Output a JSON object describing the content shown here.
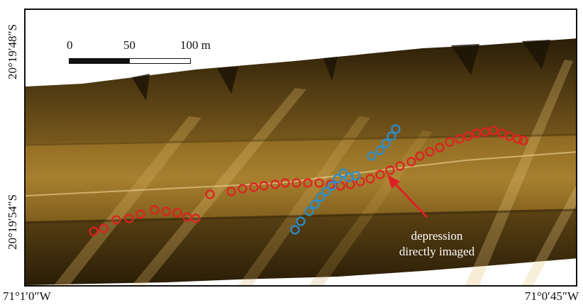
{
  "coordinates": {
    "lat_top": "20°19′48″S",
    "lat_mid": "20°19′54″S",
    "lon_left": "71°1′0″W",
    "lon_right": "71°0′45″W"
  },
  "scale_bar": {
    "label_0": "0",
    "label_50": "50",
    "label_100": "100 m"
  },
  "annotation": {
    "line1": "depression",
    "line2": "directly imaged"
  },
  "colors": {
    "red_markers": "#e02020",
    "blue_markers": "#2a8fd0",
    "sonar_base": "#7a5a18",
    "sonar_highlight": "#c9a24a",
    "arrow": "#e02020",
    "annotation_text": "#ffffff"
  },
  "markers": {
    "red_count": 42,
    "blue_count": 16
  }
}
